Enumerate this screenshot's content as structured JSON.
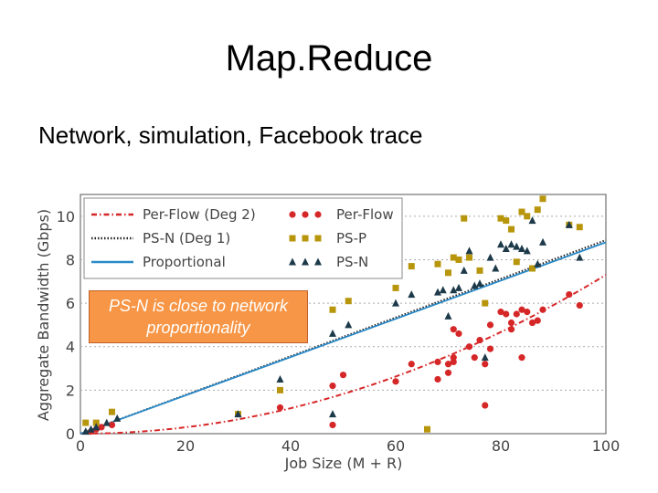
{
  "slide": {
    "title": "Map.Reduce",
    "subtitle": "Network, simulation, Facebook trace",
    "callout": "PS-N is close to network proportionality"
  },
  "chart_data": {
    "type": "scatter",
    "title": "",
    "xlabel": "Job Size (M + R)",
    "ylabel": "Aggregate Bandwidth (Gbps)",
    "xlim": [
      0,
      100
    ],
    "ylim": [
      0,
      11
    ],
    "xticks": [
      0,
      20,
      40,
      60,
      80,
      100
    ],
    "yticks": [
      0,
      2,
      4,
      6,
      8,
      10
    ],
    "grid": "horizontal dotted",
    "legend_position": "top-left",
    "colors": {
      "red": "#d62728",
      "black": "#222222",
      "blue": "#2a8ac7",
      "olive": "#b8960c",
      "navy": "#1d3a4a"
    },
    "lines": [
      {
        "name": "Per-Flow (Deg 2)",
        "style": "dashdot",
        "color": "#d62728",
        "curve": "quadratic",
        "points": [
          [
            0,
            0
          ],
          [
            20,
            0.3
          ],
          [
            40,
            1.0
          ],
          [
            60,
            2.3
          ],
          [
            80,
            4.6
          ],
          [
            100,
            7.3
          ]
        ]
      },
      {
        "name": "PS-N (Deg 1)",
        "style": "dotted",
        "color": "#222222",
        "points": [
          [
            0,
            0
          ],
          [
            100,
            8.9
          ]
        ]
      },
      {
        "name": "Proportional",
        "style": "solid",
        "color": "#2a8ac7",
        "points": [
          [
            0,
            0
          ],
          [
            100,
            8.8
          ]
        ]
      }
    ],
    "series": [
      {
        "name": "Per-Flow",
        "marker": "circle",
        "color": "#d62728",
        "points": [
          [
            2,
            0.1
          ],
          [
            3,
            0.2
          ],
          [
            4,
            0.3
          ],
          [
            6,
            0.4
          ],
          [
            38,
            1.2
          ],
          [
            48,
            0.4
          ],
          [
            48,
            2.2
          ],
          [
            50,
            2.7
          ],
          [
            60,
            2.4
          ],
          [
            63,
            3.2
          ],
          [
            68,
            2.5
          ],
          [
            68,
            3.3
          ],
          [
            70,
            3.2
          ],
          [
            70,
            2.8
          ],
          [
            71,
            3.3
          ],
          [
            71,
            3.5
          ],
          [
            71,
            4.8
          ],
          [
            72,
            4.6
          ],
          [
            74,
            4.0
          ],
          [
            75,
            3.5
          ],
          [
            76,
            4.3
          ],
          [
            77,
            1.3
          ],
          [
            77,
            3.2
          ],
          [
            78,
            5.0
          ],
          [
            78,
            3.9
          ],
          [
            80,
            5.6
          ],
          [
            81,
            5.5
          ],
          [
            82,
            4.8
          ],
          [
            82,
            5.1
          ],
          [
            83,
            5.5
          ],
          [
            84,
            5.7
          ],
          [
            84,
            3.5
          ],
          [
            85,
            5.6
          ],
          [
            86,
            5.1
          ],
          [
            87,
            5.2
          ],
          [
            88,
            5.7
          ],
          [
            93,
            6.4
          ],
          [
            95,
            5.9
          ]
        ]
      },
      {
        "name": "PS-P",
        "marker": "square",
        "color": "#b8960c",
        "points": [
          [
            1,
            0.5
          ],
          [
            3,
            0.5
          ],
          [
            6,
            1.0
          ],
          [
            30,
            0.9
          ],
          [
            38,
            2.0
          ],
          [
            48,
            5.7
          ],
          [
            51,
            6.1
          ],
          [
            60,
            6.7
          ],
          [
            63,
            7.7
          ],
          [
            66,
            0.2
          ],
          [
            68,
            7.8
          ],
          [
            70,
            7.4
          ],
          [
            71,
            8.1
          ],
          [
            72,
            8.0
          ],
          [
            73,
            9.9
          ],
          [
            74,
            8.1
          ],
          [
            76,
            7.5
          ],
          [
            77,
            6.0
          ],
          [
            80,
            9.9
          ],
          [
            81,
            9.8
          ],
          [
            82,
            9.4
          ],
          [
            83,
            7.9
          ],
          [
            84,
            10.2
          ],
          [
            85,
            10.0
          ],
          [
            86,
            7.6
          ],
          [
            87,
            10.3
          ],
          [
            88,
            10.8
          ],
          [
            93,
            9.6
          ],
          [
            95,
            9.5
          ]
        ]
      },
      {
        "name": "PS-N",
        "marker": "triangle",
        "color": "#1d3a4a",
        "points": [
          [
            1,
            0.1
          ],
          [
            2,
            0.2
          ],
          [
            3,
            0.3
          ],
          [
            5,
            0.5
          ],
          [
            7,
            0.7
          ],
          [
            30,
            0.9
          ],
          [
            38,
            2.5
          ],
          [
            48,
            0.9
          ],
          [
            48,
            4.6
          ],
          [
            51,
            5.0
          ],
          [
            60,
            6.0
          ],
          [
            63,
            6.4
          ],
          [
            68,
            6.5
          ],
          [
            69,
            6.6
          ],
          [
            70,
            5.4
          ],
          [
            71,
            6.6
          ],
          [
            72,
            6.7
          ],
          [
            74,
            8.4
          ],
          [
            75,
            6.8
          ],
          [
            76,
            6.9
          ],
          [
            77,
            3.5
          ],
          [
            78,
            8.1
          ],
          [
            79,
            7.6
          ],
          [
            80,
            8.7
          ],
          [
            81,
            8.5
          ],
          [
            82,
            8.7
          ],
          [
            83,
            8.6
          ],
          [
            84,
            8.5
          ],
          [
            85,
            8.4
          ],
          [
            86,
            9.8
          ],
          [
            87,
            7.8
          ],
          [
            88,
            8.8
          ],
          [
            93,
            9.6
          ],
          [
            95,
            8.1
          ],
          [
            73,
            7.5
          ]
        ]
      }
    ]
  }
}
